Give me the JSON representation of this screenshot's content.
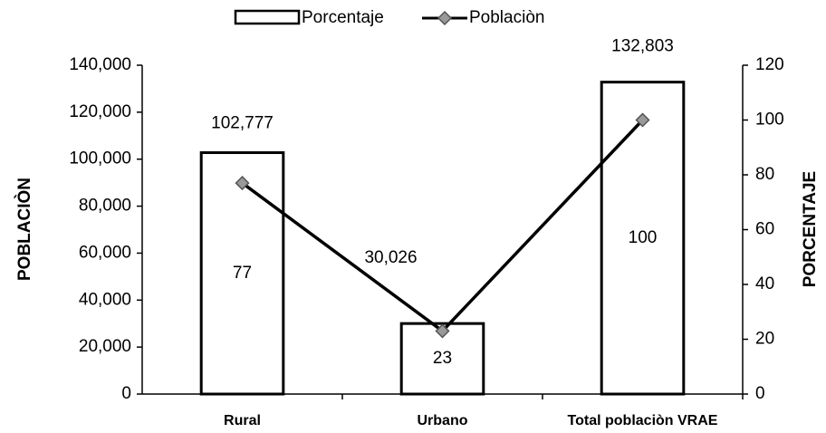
{
  "chart_data": {
    "type": "bar_line",
    "categories": [
      "Rural",
      "Urbano",
      "Total poblaciòn VRAE"
    ],
    "series": [
      {
        "name": "Porcentaje",
        "type": "bar",
        "color": "#ffffff",
        "values": [
          102777,
          30026,
          132803
        ],
        "value_labels": [
          "102,777",
          "30,026",
          "132,803"
        ]
      },
      {
        "name": "Poblaciòn",
        "type": "line",
        "axis": "y2",
        "color": "#000000",
        "values": [
          77,
          23,
          100
        ]
      }
    ],
    "ylabel": "POBLACIÒN",
    "y2label": "PORCENTAJE",
    "ylim": [
      0,
      140000
    ],
    "yticks": [
      0,
      {
        "value": 20000,
        "label": "20,000"
      },
      {
        "value": 40000,
        "label": "40,000"
      },
      {
        "value": 60000,
        "label": "60,000"
      },
      {
        "value": 80000,
        "label": "80,000"
      },
      {
        "value": 100000,
        "label": "100,000"
      },
      {
        "value": 120000,
        "label": "120,000"
      },
      {
        "value": 140000,
        "label": "140,000"
      }
    ],
    "y2lim": [
      0,
      120
    ],
    "y2ticks": [
      0,
      20,
      40,
      60,
      80,
      100,
      120
    ],
    "legend": "top"
  }
}
